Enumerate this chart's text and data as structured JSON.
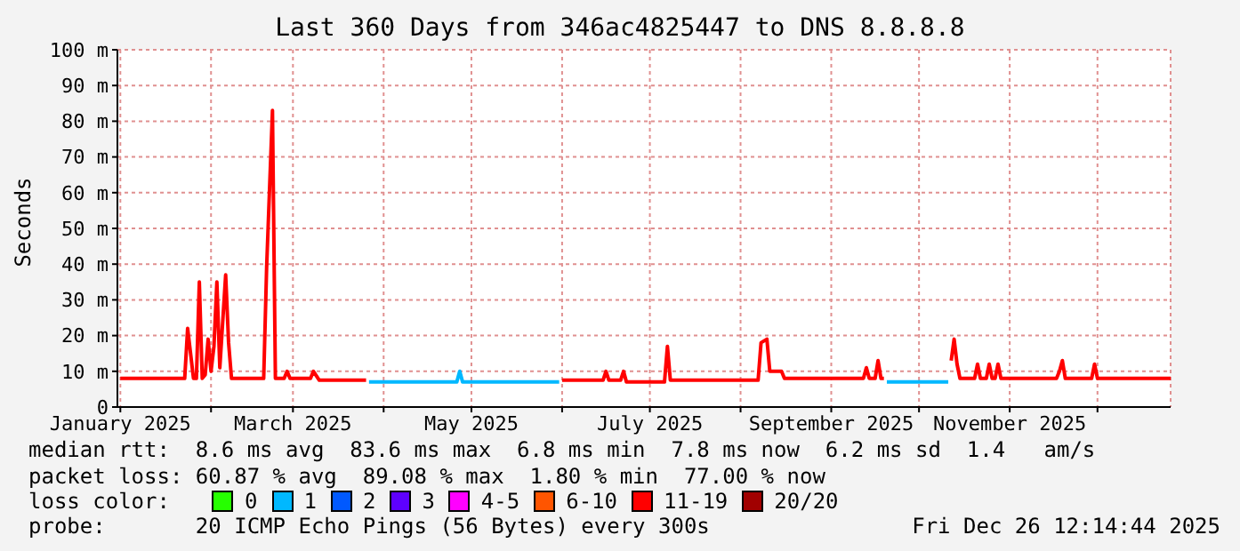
{
  "chart_data": {
    "type": "line",
    "title": "Last 360 Days from 346ac4825447 to DNS 8.8.8.8",
    "ylabel": "Seconds",
    "xlim": [
      "2024-12-31",
      "2025-12-26"
    ],
    "xticks": [
      {
        "value": "2025-01-01",
        "label": "January 2025"
      },
      {
        "value": "2025-02-01",
        "label": null
      },
      {
        "value": "2025-03-01",
        "label": "March 2025"
      },
      {
        "value": "2025-04-01",
        "label": null
      },
      {
        "value": "2025-05-01",
        "label": "May 2025"
      },
      {
        "value": "2025-06-01",
        "label": null
      },
      {
        "value": "2025-07-01",
        "label": "July 2025"
      },
      {
        "value": "2025-08-01",
        "label": null
      },
      {
        "value": "2025-09-01",
        "label": "September 2025"
      },
      {
        "value": "2025-10-01",
        "label": null
      },
      {
        "value": "2025-11-01",
        "label": "November 2025"
      },
      {
        "value": "2025-12-01",
        "label": null
      }
    ],
    "ylim": [
      0,
      100
    ],
    "yticks": [
      0,
      {
        "value": 10,
        "label": "10 m"
      },
      {
        "value": 20,
        "label": "20 m"
      },
      {
        "value": 30,
        "label": "30 m"
      },
      {
        "value": 40,
        "label": "40 m"
      },
      {
        "value": 50,
        "label": "50 m"
      },
      {
        "value": 60,
        "label": "60 m"
      },
      {
        "value": 70,
        "label": "70 m"
      },
      {
        "value": 80,
        "label": "80 m"
      },
      {
        "value": 90,
        "label": "90 m"
      },
      {
        "value": 100,
        "label": "100 m"
      }
    ],
    "grid": true,
    "legend": "bottom",
    "legend_title": "loss color:",
    "line_style": "solid",
    "marker": "none",
    "series": [
      {
        "name": "0",
        "color": "#26ff00"
      },
      {
        "name": "1",
        "color": "#00b8ff",
        "x": [
          "2025-03-27",
          "2025-04-26",
          "2025-04-27",
          "2025-04-28",
          "2025-05-31",
          "2025-06-01",
          "2025-09-19",
          "2025-09-20",
          "2025-10-11"
        ],
        "values": [
          7,
          7,
          10,
          7,
          7,
          null,
          null,
          7,
          7
        ]
      },
      {
        "name": "2",
        "color": "#0059ff"
      },
      {
        "name": "3",
        "color": "#5e00ff"
      },
      {
        "name": "4-5",
        "color": "#ff00ff"
      },
      {
        "name": "6-10",
        "color": "#ff5500"
      },
      {
        "name": "11-19",
        "color": "#ff0000",
        "x": [
          "2025-01-01",
          "2025-01-23",
          "2025-01-24",
          "2025-01-26",
          "2025-01-27",
          "2025-01-28",
          "2025-01-29",
          "2025-01-30",
          "2025-01-31",
          "2025-02-01",
          "2025-02-02",
          "2025-02-03",
          "2025-02-04",
          "2025-02-05",
          "2025-02-06",
          "2025-02-07",
          "2025-02-08",
          "2025-02-19",
          "2025-02-20",
          "2025-02-22",
          "2025-02-23",
          "2025-02-26",
          "2025-02-27",
          "2025-02-28",
          "2025-03-07",
          "2025-03-08",
          "2025-03-10",
          "2025-03-26",
          "2025-03-27",
          "2025-05-31",
          "2025-06-01",
          "2025-06-15",
          "2025-06-16",
          "2025-06-17",
          "2025-06-21",
          "2025-06-22",
          "2025-06-23",
          "2025-07-06",
          "2025-07-07",
          "2025-07-08",
          "2025-08-07",
          "2025-08-08",
          "2025-08-10",
          "2025-08-11",
          "2025-08-15",
          "2025-08-16",
          "2025-09-12",
          "2025-09-13",
          "2025-09-14",
          "2025-09-16",
          "2025-09-17",
          "2025-09-18",
          "2025-09-19",
          "2025-09-20",
          "2025-10-11",
          "2025-10-12",
          "2025-10-13",
          "2025-10-14",
          "2025-10-15",
          "2025-10-20",
          "2025-10-21",
          "2025-10-22",
          "2025-10-24",
          "2025-10-25",
          "2025-10-26",
          "2025-10-27",
          "2025-10-28",
          "2025-10-29",
          "2025-11-17",
          "2025-11-18",
          "2025-11-19",
          "2025-11-20",
          "2025-11-29",
          "2025-11-30",
          "2025-12-01",
          "2025-12-26"
        ],
        "values": [
          8,
          8,
          22,
          8,
          8,
          35,
          8,
          9,
          19,
          10,
          17,
          35,
          11,
          24,
          37,
          18,
          8,
          8,
          39,
          83,
          8,
          8,
          10,
          8,
          8,
          10,
          7.5,
          7.5,
          null,
          null,
          7.5,
          7.5,
          10,
          7.5,
          7.5,
          10,
          7,
          7,
          17,
          7.5,
          7.5,
          18,
          19,
          10,
          10,
          8,
          8,
          11,
          8,
          8,
          13,
          8,
          8,
          null,
          null,
          13,
          19,
          12,
          8,
          8,
          12,
          8,
          8,
          12,
          8,
          8,
          12,
          8,
          8,
          10,
          13,
          8,
          8,
          12,
          8,
          8
        ]
      },
      {
        "name": "20/20",
        "color": "#a10000"
      }
    ],
    "annotations": [
      "median rtt:  8.6 ms avg  83.6 ms max  6.8 ms min  7.8 ms now  6.2 ms sd  1.4   am/s",
      "packet loss: 60.87 % avg  89.08 % max  1.80 % min  77.00 % now",
      "probe:       20 ICMP Echo Pings (56 Bytes) every 300s",
      "Fri Dec 26 12:14:44 2025"
    ]
  }
}
